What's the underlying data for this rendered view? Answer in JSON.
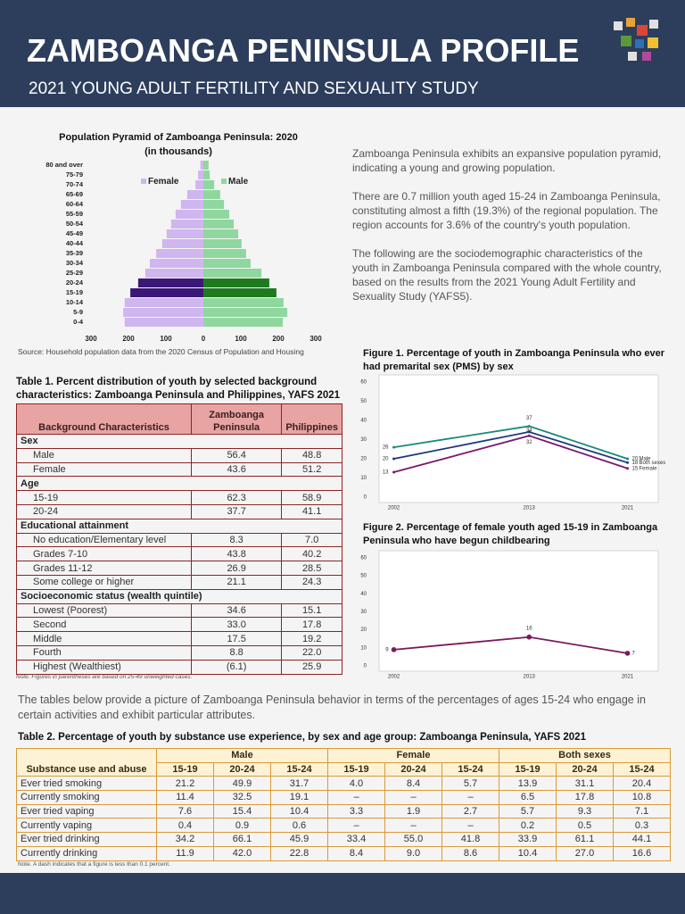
{
  "header": {
    "title": "ZAMBOANGA PENINSULA PROFILE",
    "subtitle": "2021 YOUNG ADULT FERTILITY AND SEXUALITY STUDY"
  },
  "chart_data": [
    {
      "type": "pyramid",
      "title": "Population Pyramid of Zamboanga Peninsula: 2020",
      "subtitle": "(in thousands)",
      "categories": [
        "80 and over",
        "75-79",
        "70-74",
        "65-69",
        "60-64",
        "55-59",
        "50-54",
        "45-49",
        "40-44",
        "35-39",
        "30-34",
        "25-29",
        "20-24",
        "15-19",
        "10-14",
        "5-9",
        "0-4"
      ],
      "series": [
        {
          "name": "Female",
          "side": "left",
          "color": "#cfb6ef",
          "highlight_color": "#3b1877",
          "values": [
            8,
            14,
            21,
            43,
            60,
            74,
            86,
            98,
            110,
            126,
            143,
            155,
            174,
            195,
            210,
            214,
            210
          ]
        },
        {
          "name": "Male",
          "side": "right",
          "color": "#8fd79f",
          "highlight_color": "#1f7a1f",
          "values": [
            14,
            17,
            29,
            45,
            55,
            69,
            81,
            93,
            102,
            114,
            126,
            155,
            176,
            195,
            214,
            224,
            212
          ]
        }
      ],
      "highlight": [
        "20-24",
        "15-19"
      ],
      "xlim": [
        -300,
        300
      ],
      "xticks": [
        {
          "value": -300,
          "label": "300"
        },
        {
          "value": -200,
          "label": "200"
        },
        {
          "value": -100,
          "label": "100"
        },
        0,
        100,
        200,
        300
      ],
      "source": "Source: Household population data from the 2020 Census of Population and Housing"
    },
    {
      "type": "line",
      "title": "Figure 1. Percentage of youth in Zamboanga Peninsula who ever had premarital sex (PMS) by sex",
      "x": [
        2002,
        2013,
        2021
      ],
      "series": [
        {
          "name": "Male",
          "color": "#1b8a78",
          "values": [
            26,
            37,
            20
          ]
        },
        {
          "name": "Both sexes",
          "color": "#1f3a7a",
          "values": [
            20,
            34,
            18
          ]
        },
        {
          "name": "Female",
          "color": "#7b1a6b",
          "values": [
            13,
            32,
            15
          ]
        }
      ],
      "xlim": [
        2000.8,
        2023.5
      ],
      "xticks": [
        2002,
        2013,
        2021
      ],
      "ylim": [
        0,
        60
      ],
      "yticks": [
        0,
        10,
        20,
        30,
        40,
        50,
        60
      ]
    },
    {
      "type": "line",
      "title": "Figure 2. Percentage of female youth aged 15-19 in Zamboanga Peninsula who have begun childbearing",
      "x": [
        2002,
        2013,
        2021
      ],
      "series": [
        {
          "color": "#7b1a5a",
          "values": [
            9,
            16,
            7
          ]
        }
      ],
      "xlim": [
        2000.8,
        2023.5
      ],
      "xticks": [
        2002,
        2013,
        2021
      ],
      "ylim": [
        0,
        60
      ],
      "yticks": [
        0,
        10,
        20,
        30,
        40,
        50,
        60
      ]
    }
  ],
  "intro_paragraphs": [
    "Zamboanga Peninsula exhibits an expansive population pyramid, indicating a young and growing population.",
    "There are 0.7 million youth aged 15-24 in Zamboanga Peninsula, constituting almost a fifth (19.3%) of the regional population. The region accounts for 3.6% of the country's youth population.",
    "The following are the sociodemographic characteristics of the youth in Zamboanga Peninsula compared with the whole country, based on the results from the 2021 Young Adult Fertility and Sexuality Study (YAFS5)."
  ],
  "table1": {
    "title": "Table 1. Percent distribution of youth by selected background characteristics: Zamboanga Peninsula and Philippines, YAFS 2021",
    "columns": [
      "Background Characteristics",
      "Zamboanga Peninsula",
      "Philippines"
    ],
    "sections": [
      {
        "name": "Sex",
        "rows": [
          [
            "Male",
            "56.4",
            "48.8"
          ],
          [
            "Female",
            "43.6",
            "51.2"
          ]
        ]
      },
      {
        "name": "Age",
        "rows": [
          [
            "15-19",
            "62.3",
            "58.9"
          ],
          [
            "20-24",
            "37.7",
            "41.1"
          ]
        ]
      },
      {
        "name": "Educational attainment",
        "rows": [
          [
            "No education/Elementary level",
            "8.3",
            "7.0"
          ],
          [
            "Grades 7-10",
            "43.8",
            "40.2"
          ],
          [
            "Grades 11-12",
            "26.9",
            "28.5"
          ],
          [
            "Some college or higher",
            "21.1",
            "24.3"
          ]
        ]
      },
      {
        "name": "Socioeconomic status (wealth quintile)",
        "rows": [
          [
            "Lowest (Poorest)",
            "34.6",
            "15.1"
          ],
          [
            "Second",
            "33.0",
            "17.8"
          ],
          [
            "Middle",
            "17.5",
            "19.2"
          ],
          [
            "Fourth",
            "8.8",
            "22.0"
          ],
          [
            "Highest (Wealthiest)",
            "(6.1)",
            "25.9"
          ]
        ]
      }
    ],
    "note": "Note. Figures in parentheses are based on 25-49 unweighted cases."
  },
  "paragraph": "The tables below provide a picture of Zamboanga Peninsula behavior in terms of the percentages of ages 15-24 who engage in certain activities and exhibit particular attributes.",
  "table2": {
    "title": "Table 2. Percentage of youth by substance use experience, by sex and age group: Zamboanga Peninsula, YAFS 2021",
    "row_header": "Substance use and abuse",
    "groups": [
      {
        "name": "Male",
        "ages": [
          "15-19",
          "20-24",
          "15-24"
        ]
      },
      {
        "name": "Female",
        "ages": [
          "15-19",
          "20-24",
          "15-24"
        ]
      },
      {
        "name": "Both sexes",
        "ages": [
          "15-19",
          "20-24",
          "15-24"
        ]
      }
    ],
    "rows": [
      [
        "Ever tried smoking",
        "21.2",
        "49.9",
        "31.7",
        "4.0",
        "8.4",
        "5.7",
        "13.9",
        "31.1",
        "20.4"
      ],
      [
        "Currently smoking",
        "11.4",
        "32.5",
        "19.1",
        "–",
        "–",
        "–",
        "6.5",
        "17.8",
        "10.8"
      ],
      [
        "Ever tried vaping",
        "7.6",
        "15.4",
        "10.4",
        "3.3",
        "1.9",
        "2.7",
        "5.7",
        "9.3",
        "7.1"
      ],
      [
        "Currently vaping",
        "0.4",
        "0.9",
        "0.6",
        "–",
        "–",
        "–",
        "0.2",
        "0.5",
        "0.3"
      ],
      [
        "Ever tried drinking",
        "34.2",
        "66.1",
        "45.9",
        "33.4",
        "55.0",
        "41.8",
        "33.9",
        "61.1",
        "44.1"
      ],
      [
        "Currently drinking",
        "11.9",
        "42.0",
        "22.8",
        "8.4",
        "9.0",
        "8.6",
        "10.4",
        "27.0",
        "16.6"
      ]
    ],
    "note": "Note.  A dash indicates that a figure is less than 0.1 percent."
  }
}
